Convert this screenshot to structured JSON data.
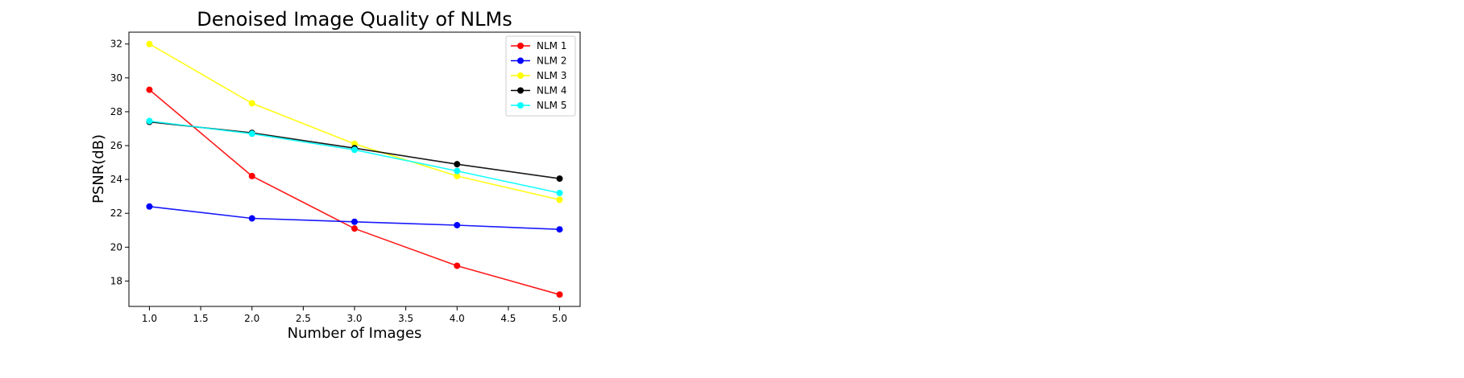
{
  "chart_data": {
    "type": "line",
    "title": "Denoised Image Quality of NLMs",
    "xlabel": "Number of Images",
    "ylabel": "PSNR(dB)",
    "x": [
      1.0,
      2.0,
      3.0,
      4.0,
      5.0
    ],
    "xlim": [
      0.8,
      5.2
    ],
    "ylim": [
      16.5,
      32.7
    ],
    "xticks": [
      "1.0",
      "1.5",
      "2.0",
      "2.5",
      "3.0",
      "3.5",
      "4.0",
      "4.5",
      "5.0"
    ],
    "yticks": [
      "18",
      "20",
      "22",
      "24",
      "26",
      "28",
      "30",
      "32"
    ],
    "grid": false,
    "legend_position": "top-right",
    "series": [
      {
        "name": "NLM 1",
        "color": "#ff0000",
        "values": [
          29.3,
          24.2,
          21.1,
          18.9,
          17.2
        ]
      },
      {
        "name": "NLM 2",
        "color": "#0000ff",
        "values": [
          22.4,
          21.7,
          21.5,
          21.3,
          21.05
        ]
      },
      {
        "name": "NLM 3",
        "color": "#ffff00",
        "values": [
          32.0,
          28.5,
          26.1,
          24.2,
          22.8
        ]
      },
      {
        "name": "NLM 4",
        "color": "#000000",
        "values": [
          27.4,
          26.75,
          25.85,
          24.9,
          24.05
        ]
      },
      {
        "name": "NLM 5",
        "color": "#00ffff",
        "values": [
          27.45,
          26.7,
          25.75,
          24.5,
          23.2
        ]
      }
    ]
  }
}
